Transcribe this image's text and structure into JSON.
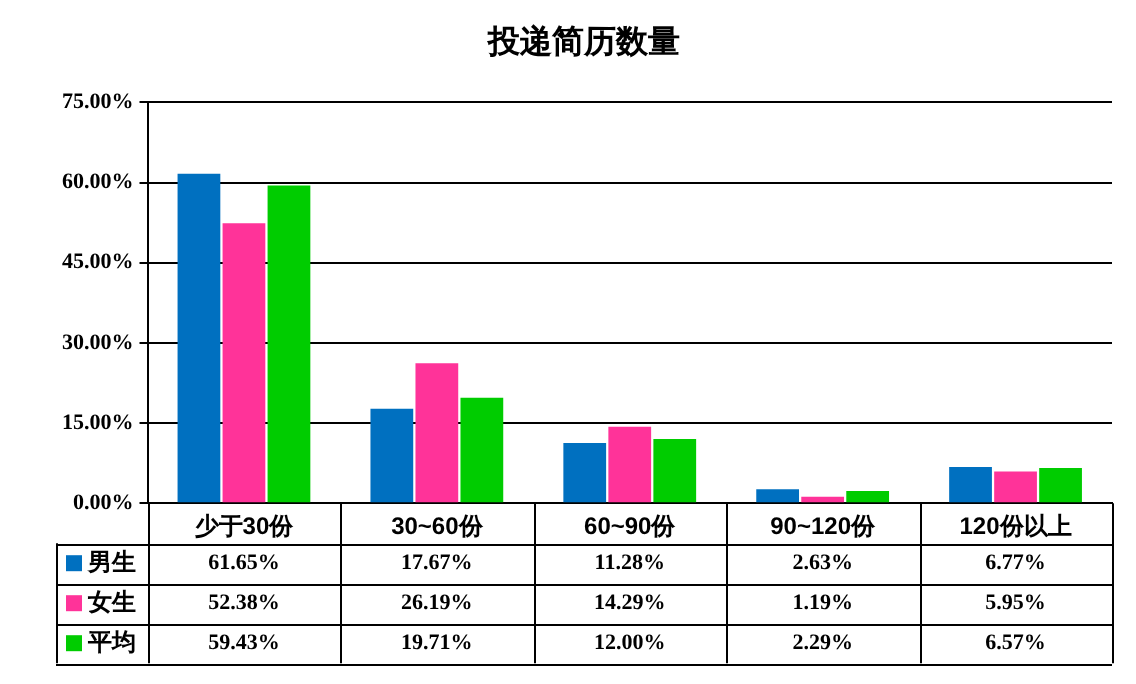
{
  "chart_data": {
    "type": "bar",
    "title": "投递简历数量",
    "categories": [
      "少于30份",
      "30~60份",
      "60~90份",
      "90~120份",
      "120份以上"
    ],
    "series": [
      {
        "name": "男生",
        "color": "#0070c0",
        "values": [
          61.65,
          17.67,
          11.28,
          2.63,
          6.77
        ],
        "value_labels": [
          "61.65%",
          "17.67%",
          "11.28%",
          "2.63%",
          "6.77%"
        ]
      },
      {
        "name": "女生",
        "color": "#ff3399",
        "values": [
          52.38,
          26.19,
          14.29,
          1.19,
          5.95
        ],
        "value_labels": [
          "52.38%",
          "26.19%",
          "14.29%",
          "1.19%",
          "5.95%"
        ]
      },
      {
        "name": "平均",
        "color": "#00cc00",
        "values": [
          59.43,
          19.71,
          12.0,
          2.29,
          6.57
        ],
        "value_labels": [
          "59.43%",
          "19.71%",
          "12.00%",
          "2.29%",
          "6.57%"
        ]
      }
    ],
    "ylim": [
      0,
      75
    ],
    "yticks": [
      {
        "value": 0,
        "label": "0.00%"
      },
      {
        "value": 15,
        "label": "15.00%"
      },
      {
        "value": 30,
        "label": "30.00%"
      },
      {
        "value": 45,
        "label": "45.00%"
      },
      {
        "value": 60,
        "label": "60.00%"
      },
      {
        "value": 75,
        "label": "75.00%"
      }
    ],
    "grid": "y",
    "legend": "bottom left"
  }
}
